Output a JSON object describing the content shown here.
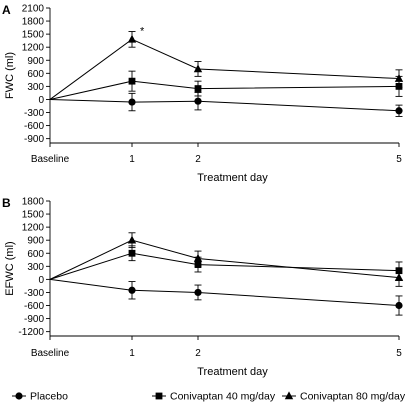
{
  "chart_data": [
    {
      "type": "line",
      "panel": "A",
      "ylabel": "FWC (ml)",
      "xlabel": "Treatment day",
      "categories": [
        "Baseline",
        "1",
        "2",
        "5"
      ],
      "x": [
        0,
        1,
        2,
        5
      ],
      "ylim": [
        -1000,
        2100
      ],
      "yticks": [
        2100,
        1800,
        1500,
        1200,
        900,
        600,
        300,
        0,
        -300,
        -600,
        -900
      ],
      "annotation": {
        "text": "*",
        "x": 1
      },
      "series": [
        {
          "name": "Placebo",
          "marker": "circle",
          "values": [
            0,
            -60,
            -40,
            -260
          ],
          "errors": [
            0,
            200,
            200,
            130
          ]
        },
        {
          "name": "Conivaptan 40 mg/day",
          "marker": "square",
          "values": [
            0,
            420,
            250,
            300
          ],
          "errors": [
            0,
            230,
            170,
            230
          ]
        },
        {
          "name": "Conivaptan 80 mg/day",
          "marker": "triangle",
          "values": [
            0,
            1380,
            700,
            480
          ],
          "errors": [
            0,
            180,
            170,
            200
          ]
        }
      ]
    },
    {
      "type": "line",
      "panel": "B",
      "ylabel": "EFWC (ml)",
      "xlabel": "Treatment day",
      "categories": [
        "Baseline",
        "1",
        "2",
        "5"
      ],
      "x": [
        0,
        1,
        2,
        5
      ],
      "ylim": [
        -1300,
        1800
      ],
      "yticks": [
        1800,
        1500,
        1200,
        900,
        600,
        300,
        0,
        -300,
        -600,
        -900,
        -1200
      ],
      "series": [
        {
          "name": "Placebo",
          "marker": "circle",
          "values": [
            0,
            -250,
            -300,
            -600
          ],
          "errors": [
            0,
            200,
            170,
            220
          ]
        },
        {
          "name": "Conivaptan 40 mg/day",
          "marker": "square",
          "values": [
            0,
            600,
            340,
            200
          ],
          "errors": [
            0,
            170,
            170,
            200
          ]
        },
        {
          "name": "Conivaptan 80 mg/day",
          "marker": "triangle",
          "values": [
            0,
            900,
            480,
            40
          ],
          "errors": [
            0,
            170,
            170,
            200
          ]
        }
      ]
    }
  ],
  "legend": {
    "position": "bottom",
    "items": [
      {
        "label": "Placebo",
        "marker": "circle"
      },
      {
        "label": "Conivaptan 40 mg/day",
        "marker": "square"
      },
      {
        "label": "Conivaptan 80 mg/day",
        "marker": "triangle"
      }
    ]
  }
}
